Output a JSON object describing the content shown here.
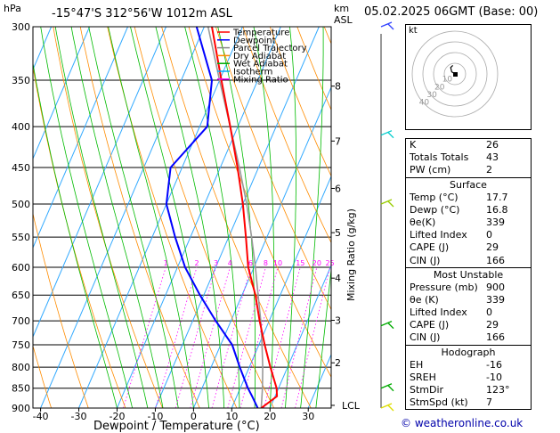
{
  "header": {
    "pressure_unit": "hPa",
    "location": "-15°47'S 312°56'W 1012m ASL",
    "km_unit": "km",
    "asl": "ASL",
    "date": "05.02.2025 06GMT (Base: 00)"
  },
  "legend": [
    {
      "label": "Temperature",
      "color": "#ff0000"
    },
    {
      "label": "Dewpoint",
      "color": "#0000ff"
    },
    {
      "label": "Parcel Trajectory",
      "color": "#888888"
    },
    {
      "label": "Dry Adiabat",
      "color": "#ff8c00"
    },
    {
      "label": "Wet Adiabat",
      "color": "#00aa00"
    },
    {
      "label": "Isotherm",
      "color": "#00aaff"
    },
    {
      "label": "Mixing Ratio",
      "color": "#ff00ff"
    }
  ],
  "chart_data": {
    "type": "line",
    "xlabel": "Dewpoint / Temperature (°C)",
    "ylabel": "hPa",
    "y2label": "Mixing Ratio (g/kg)",
    "pressure_ticks": [
      300,
      350,
      400,
      450,
      500,
      550,
      600,
      650,
      700,
      750,
      800,
      850,
      900
    ],
    "temp_ticks": [
      -40,
      -30,
      -20,
      -10,
      0,
      10,
      20,
      30
    ],
    "xlim": [
      -42,
      36
    ],
    "ylim": [
      900,
      300
    ],
    "skew_deg_per_px": 0.1,
    "km_ticks": [
      {
        "label": "8",
        "p": 356
      },
      {
        "label": "7",
        "p": 417
      },
      {
        "label": "6",
        "p": 478
      },
      {
        "label": "5",
        "p": 543
      },
      {
        "label": "4",
        "p": 619
      },
      {
        "label": "3",
        "p": 699
      },
      {
        "label": "2",
        "p": 790
      },
      {
        "label": "LCL",
        "p": 893
      }
    ],
    "mixing_ratio_labels": [
      "1",
      "2",
      "3",
      "4",
      "6",
      "8",
      "10",
      "15",
      "20",
      "25"
    ],
    "mixing_ratio_values": [
      1,
      2,
      3,
      4,
      6,
      8,
      10,
      15,
      20,
      25
    ],
    "series": [
      {
        "name": "Temperature",
        "color": "#ff0000",
        "p": [
          900,
          870,
          850,
          800,
          750,
          700,
          650,
          600,
          550,
          500,
          450,
          400,
          350,
          300
        ],
        "t": [
          17.7,
          20.5,
          19.5,
          15.5,
          11.5,
          7.5,
          3.5,
          -1.5,
          -5.5,
          -10,
          -15.5,
          -22,
          -29.5,
          -38
        ]
      },
      {
        "name": "Dewpoint",
        "color": "#0000ff",
        "p": [
          900,
          870,
          850,
          800,
          750,
          700,
          650,
          600,
          550,
          500,
          450,
          400,
          350,
          300
        ],
        "t": [
          16.8,
          14,
          12,
          7.5,
          3,
          -4,
          -11,
          -18,
          -24,
          -30,
          -33,
          -28,
          -32,
          -42
        ]
      },
      {
        "name": "Parcel Trajectory",
        "color": "#999999",
        "p": [
          900,
          850,
          800,
          750,
          700,
          650,
          600,
          550,
          500,
          450,
          400,
          350,
          300
        ],
        "t": [
          17.7,
          15.8,
          13.5,
          10.8,
          7.8,
          4.2,
          0.4,
          -4,
          -9,
          -15,
          -22,
          -30,
          -39
        ]
      }
    ]
  },
  "hodograph": {
    "unit": "kt",
    "ring_labels": [
      "10",
      "20",
      "30",
      "40"
    ],
    "trace": [
      [
        0,
        0
      ],
      [
        -3,
        2
      ],
      [
        -4,
        6
      ],
      [
        -2,
        8
      ]
    ]
  },
  "indices": [
    {
      "label": "K",
      "value": "26"
    },
    {
      "label": "Totals Totals",
      "value": "43"
    },
    {
      "label": "PW (cm)",
      "value": "2"
    }
  ],
  "surface": {
    "title": "Surface",
    "rows": [
      {
        "label": "Temp (°C)",
        "value": "17.7"
      },
      {
        "label": "Dewp (°C)",
        "value": "16.8"
      },
      {
        "label": "θe(K)",
        "value": "339"
      },
      {
        "label": "Lifted Index",
        "value": "0"
      },
      {
        "label": "CAPE (J)",
        "value": "29"
      },
      {
        "label": "CIN (J)",
        "value": "166"
      }
    ]
  },
  "most_unstable": {
    "title": "Most Unstable",
    "rows": [
      {
        "label": "Pressure (mb)",
        "value": "900"
      },
      {
        "label": "θe (K)",
        "value": "339"
      },
      {
        "label": "Lifted Index",
        "value": "0"
      },
      {
        "label": "CAPE (J)",
        "value": "29"
      },
      {
        "label": "CIN (J)",
        "value": "166"
      }
    ]
  },
  "hodograph_indices": {
    "title": "Hodograph",
    "rows": [
      {
        "label": "EH",
        "value": "-16"
      },
      {
        "label": "SREH",
        "value": "-10"
      },
      {
        "label": "StmDir",
        "value": "123°"
      },
      {
        "label": "StmSpd (kt)",
        "value": "7"
      }
    ]
  },
  "footer": "© weatheronline.co.uk"
}
